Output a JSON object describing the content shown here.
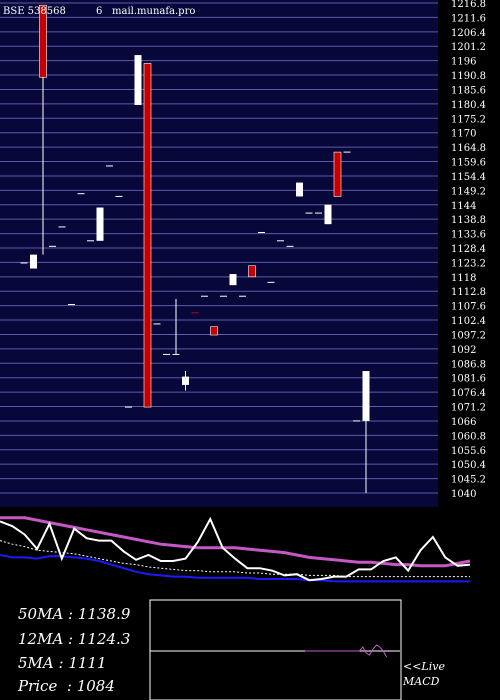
{
  "chart_data": {
    "type": "candlestick",
    "title": "BSE 538568 mail.munafa.pro",
    "title_parts": [
      "BSE 538568",
      "6",
      "mail.munafa.pro"
    ],
    "y_ticks": [
      "1216.8",
      "1211.6",
      "1206.4",
      "1201.2",
      "1196",
      "1190.8",
      "1185.6",
      "1180.4",
      "1175.2",
      "1170",
      "1164.8",
      "1159.6",
      "1154.4",
      "1149.2",
      "1144",
      "1138.8",
      "1133.6",
      "1128.4",
      "1123.2",
      "1118",
      "1112.8",
      "1107.6",
      "1102.4",
      "1097.2",
      "1092",
      "1086.8",
      "1081.6",
      "1076.4",
      "1071.2",
      "1066",
      "1060.8",
      "1055.6",
      "1050.4",
      "1045.2",
      "1040"
    ],
    "ylim": [
      1040,
      1216.8
    ],
    "candles": [
      {
        "o": 1123,
        "c": 1123,
        "h": 1123,
        "l": 1123,
        "color": "white"
      },
      {
        "o": 1126,
        "c": 1121,
        "h": 1126,
        "l": 1121,
        "color": "white"
      },
      {
        "o": 1190,
        "c": 1216,
        "h": 1216,
        "l": 1126,
        "color": "red"
      },
      {
        "o": 1129,
        "c": 1129,
        "h": 1129,
        "l": 1129,
        "color": "white"
      },
      {
        "o": 1136,
        "c": 1136,
        "h": 1136,
        "l": 1136,
        "color": "white"
      },
      {
        "o": 1108,
        "c": 1108,
        "h": 1108,
        "l": 1108,
        "color": "white"
      },
      {
        "o": 1148,
        "c": 1148,
        "h": 1148,
        "l": 1148,
        "color": "white"
      },
      {
        "o": 1131,
        "c": 1131,
        "h": 1131,
        "l": 1131,
        "color": "white"
      },
      {
        "o": 1131,
        "c": 1143,
        "h": 1143,
        "l": 1131,
        "color": "white"
      },
      {
        "o": 1158,
        "c": 1158,
        "h": 1158,
        "l": 1158,
        "color": "white"
      },
      {
        "o": 1147,
        "c": 1147,
        "h": 1147,
        "l": 1147,
        "color": "white"
      },
      {
        "o": 1071,
        "c": 1071,
        "h": 1071,
        "l": 1071,
        "color": "white"
      },
      {
        "o": 1180,
        "c": 1198,
        "h": 1198,
        "l": 1180,
        "color": "white"
      },
      {
        "o": 1195,
        "c": 1071,
        "h": 1195,
        "l": 1071,
        "color": "red"
      },
      {
        "o": 1101,
        "c": 1101,
        "h": 1101,
        "l": 1101,
        "color": "white"
      },
      {
        "o": 1090,
        "c": 1090,
        "h": 1090,
        "l": 1090,
        "color": "white"
      },
      {
        "o": 1090,
        "c": 1090,
        "h": 1110,
        "l": 1090,
        "color": "white"
      },
      {
        "o": 1079,
        "c": 1082,
        "h": 1084,
        "l": 1077,
        "color": "white"
      },
      {
        "o": 1105,
        "c": 1105,
        "h": 1105,
        "l": 1105,
        "color": "red"
      },
      {
        "o": 1111,
        "c": 1111,
        "h": 1111,
        "l": 1111,
        "color": "white"
      },
      {
        "o": 1100,
        "c": 1097,
        "h": 1100,
        "l": 1097,
        "color": "red"
      },
      {
        "o": 1111,
        "c": 1111,
        "h": 1111,
        "l": 1111,
        "color": "white"
      },
      {
        "o": 1115,
        "c": 1119,
        "h": 1119,
        "l": 1115,
        "color": "white"
      },
      {
        "o": 1111,
        "c": 1111,
        "h": 1111,
        "l": 1111,
        "color": "white"
      },
      {
        "o": 1122,
        "c": 1118,
        "h": 1122,
        "l": 1118,
        "color": "red"
      },
      {
        "o": 1134,
        "c": 1134,
        "h": 1134,
        "l": 1134,
        "color": "white"
      },
      {
        "o": 1116,
        "c": 1116,
        "h": 1116,
        "l": 1116,
        "color": "white"
      },
      {
        "o": 1131,
        "c": 1131,
        "h": 1131,
        "l": 1131,
        "color": "white"
      },
      {
        "o": 1129,
        "c": 1129,
        "h": 1129,
        "l": 1129,
        "color": "white"
      },
      {
        "o": 1147,
        "c": 1152,
        "h": 1152,
        "l": 1147,
        "color": "white"
      },
      {
        "o": 1141,
        "c": 1141,
        "h": 1141,
        "l": 1141,
        "color": "white"
      },
      {
        "o": 1141,
        "c": 1141,
        "h": 1141,
        "l": 1141,
        "color": "white"
      },
      {
        "o": 1137,
        "c": 1144,
        "h": 1144,
        "l": 1137,
        "color": "white"
      },
      {
        "o": 1147,
        "c": 1163,
        "h": 1163,
        "l": 1147,
        "color": "red"
      },
      {
        "o": 1163,
        "c": 1163,
        "h": 1163,
        "l": 1163,
        "color": "white"
      },
      {
        "o": 1066,
        "c": 1066,
        "h": 1066,
        "l": 1066,
        "color": "white"
      },
      {
        "o": 1066,
        "c": 1084,
        "h": 1084,
        "l": 1040,
        "color": "white"
      }
    ],
    "lower_panel": {
      "type": "line",
      "price_series": [
        88,
        84,
        77,
        65,
        86,
        57,
        82,
        74,
        72,
        72,
        63,
        56,
        60,
        55,
        55,
        57,
        71,
        90,
        66,
        57,
        49,
        49,
        47,
        43,
        44,
        39,
        40,
        42,
        42,
        48,
        48,
        55,
        58,
        47,
        64,
        75,
        58,
        51,
        52
      ],
      "ma_series": [
        91,
        91,
        91,
        89,
        87,
        85,
        83,
        81,
        79,
        77,
        75,
        73,
        71,
        69,
        68,
        67,
        66,
        66,
        66,
        66,
        65,
        64,
        63,
        62,
        60,
        58,
        57,
        56,
        55,
        54,
        54,
        53,
        52,
        52,
        51,
        51,
        51,
        53,
        55
      ],
      "macd_series": [
        60,
        58,
        58,
        57,
        59,
        59,
        58,
        57,
        55,
        52,
        49,
        46,
        44,
        43,
        42,
        42,
        41,
        41,
        41,
        41,
        41,
        40,
        40,
        40,
        40,
        39,
        39,
        38,
        38,
        38,
        38,
        38,
        38,
        38,
        38,
        38,
        38,
        38,
        38
      ],
      "signal_series": [
        72,
        69,
        67,
        64,
        63,
        62,
        61,
        59,
        57,
        55,
        53,
        52,
        50,
        49,
        48,
        47,
        47,
        46,
        46,
        46,
        45,
        45,
        44,
        44,
        44,
        43,
        43,
        43,
        42,
        42,
        42,
        42,
        42,
        42,
        42,
        42,
        42,
        42,
        42
      ]
    },
    "macd_inset_series": [
      0,
      0,
      0,
      0,
      0,
      0,
      0,
      0,
      0,
      0,
      0,
      0,
      0,
      0,
      0,
      0,
      0,
      2,
      -1,
      -2,
      1,
      3,
      2,
      0,
      -3
    ]
  },
  "stats": [
    {
      "label": "50MA",
      "value": "1138.9"
    },
    {
      "label": "12MA",
      "value": "1124.3"
    },
    {
      "label": "5MA",
      "value": "1111"
    },
    {
      "label": "Price",
      "value": "1084"
    }
  ],
  "footer": {
    "live_label": "<<Live",
    "macd_label": "MACD"
  },
  "colors": {
    "background": "#000000",
    "plot_bg": "#07073a",
    "grid": "#5b5ba8",
    "up": "#ffffff",
    "down": "#c40000",
    "ma_line": "#c658c6",
    "macd_line": "#1a1aff"
  }
}
